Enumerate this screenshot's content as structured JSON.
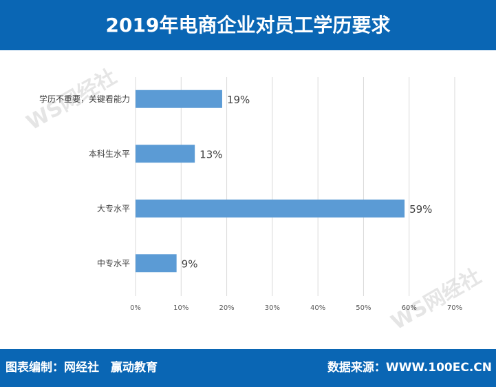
{
  "header": {
    "title": "2019年电商企业对员工学历要求"
  },
  "footer": {
    "left": "图表编制：网经社　赢动教育",
    "right": "数据来源：WWW.100EC.CN"
  },
  "watermark": {
    "text": "WS网经社"
  },
  "colors": {
    "bar": "#5b9bd5",
    "banner": "#0a66b4"
  },
  "chart_data": {
    "type": "bar",
    "orientation": "horizontal",
    "categories": [
      "学历不重要，关键看能力",
      "本科生水平",
      "大专水平",
      "中专水平"
    ],
    "values": [
      19,
      13,
      59,
      9
    ],
    "data_labels": [
      "19%",
      "13%",
      "59%",
      "9%"
    ],
    "xlim": [
      0,
      70
    ],
    "xticks": [
      "0%",
      "10%",
      "20%",
      "30%",
      "40%",
      "50%",
      "60%",
      "70%"
    ],
    "grid": true
  }
}
